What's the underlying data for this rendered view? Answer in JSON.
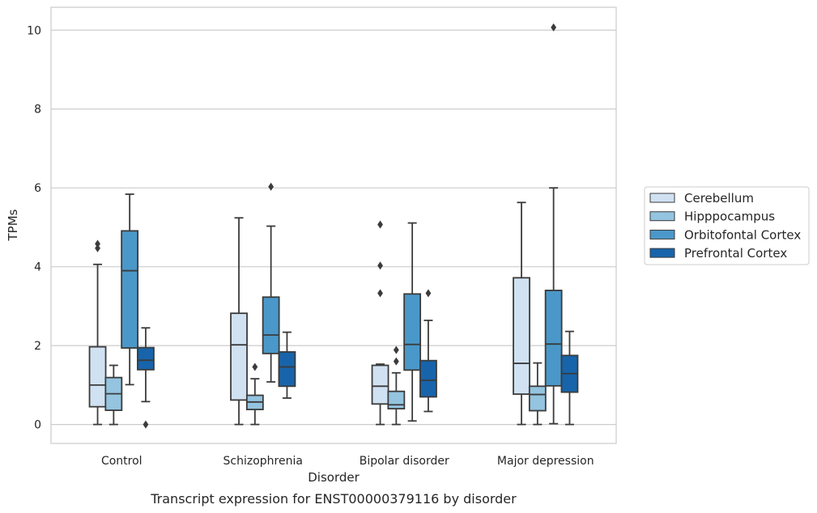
{
  "chart_data": {
    "type": "box",
    "title": "",
    "caption": "Transcript expression for ENST00000379116 by disorder",
    "xlabel": "Disorder",
    "ylabel": "TPMs",
    "ylim": [
      -0.48,
      10.58
    ],
    "yticks": [
      0,
      2,
      4,
      6,
      8,
      10
    ],
    "grid": "horizontal",
    "legend_position": "right",
    "categories": [
      "Control",
      "Schizophrenia",
      "Bipolar disorder",
      "Major depression"
    ],
    "series": [
      {
        "name": "Cerebellum",
        "color": "#d0e1f2",
        "boxes": [
          {
            "whisker_low": 0.0,
            "q1": 0.45,
            "median": 1.0,
            "q3": 1.97,
            "whisker_high": 4.06,
            "outliers": [
              4.47,
              4.58
            ]
          },
          {
            "whisker_low": 0.0,
            "q1": 0.62,
            "median": 2.02,
            "q3": 2.82,
            "whisker_high": 5.24,
            "outliers": []
          },
          {
            "whisker_low": 0.0,
            "q1": 0.52,
            "median": 0.97,
            "q3": 1.5,
            "whisker_high": 1.53,
            "outliers": [
              3.33,
              4.03,
              5.07
            ]
          },
          {
            "whisker_low": 0.0,
            "q1": 0.77,
            "median": 1.55,
            "q3": 3.72,
            "whisker_high": 5.63,
            "outliers": []
          }
        ]
      },
      {
        "name": "Hipppocampus",
        "color": "#94c4df",
        "boxes": [
          {
            "whisker_low": 0.0,
            "q1": 0.36,
            "median": 0.78,
            "q3": 1.19,
            "whisker_high": 1.5,
            "outliers": []
          },
          {
            "whisker_low": 0.0,
            "q1": 0.38,
            "median": 0.57,
            "q3": 0.74,
            "whisker_high": 1.16,
            "outliers": [
              1.46
            ]
          },
          {
            "whisker_low": 0.0,
            "q1": 0.4,
            "median": 0.5,
            "q3": 0.84,
            "whisker_high": 1.31,
            "outliers": [
              1.6,
              1.89
            ]
          },
          {
            "whisker_low": 0.0,
            "q1": 0.35,
            "median": 0.76,
            "q3": 0.97,
            "whisker_high": 1.56,
            "outliers": []
          }
        ]
      },
      {
        "name": "Orbitofontal Cortex",
        "color": "#4a98c9",
        "boxes": [
          {
            "whisker_low": 1.01,
            "q1": 1.94,
            "median": 3.9,
            "q3": 4.91,
            "whisker_high": 5.84,
            "outliers": []
          },
          {
            "whisker_low": 1.08,
            "q1": 1.8,
            "median": 2.27,
            "q3": 3.23,
            "whisker_high": 5.03,
            "outliers": [
              6.03
            ]
          },
          {
            "whisker_low": 0.09,
            "q1": 1.38,
            "median": 2.03,
            "q3": 3.31,
            "whisker_high": 5.11,
            "outliers": []
          },
          {
            "whisker_low": 0.02,
            "q1": 0.98,
            "median": 2.04,
            "q3": 3.4,
            "whisker_high": 6.0,
            "outliers": [
              10.07
            ]
          }
        ]
      },
      {
        "name": "Prefrontal Cortex",
        "color": "#1764ab",
        "boxes": [
          {
            "whisker_low": 0.58,
            "q1": 1.39,
            "median": 1.63,
            "q3": 1.95,
            "whisker_high": 2.45,
            "outliers": [
              0.0
            ]
          },
          {
            "whisker_low": 0.67,
            "q1": 0.97,
            "median": 1.46,
            "q3": 1.84,
            "whisker_high": 2.34,
            "outliers": []
          },
          {
            "whisker_low": 0.33,
            "q1": 0.7,
            "median": 1.12,
            "q3": 1.62,
            "whisker_high": 2.64,
            "outliers": [
              3.33
            ]
          },
          {
            "whisker_low": 0.0,
            "q1": 0.82,
            "median": 1.29,
            "q3": 1.75,
            "whisker_high": 2.36,
            "outliers": []
          }
        ]
      }
    ]
  }
}
